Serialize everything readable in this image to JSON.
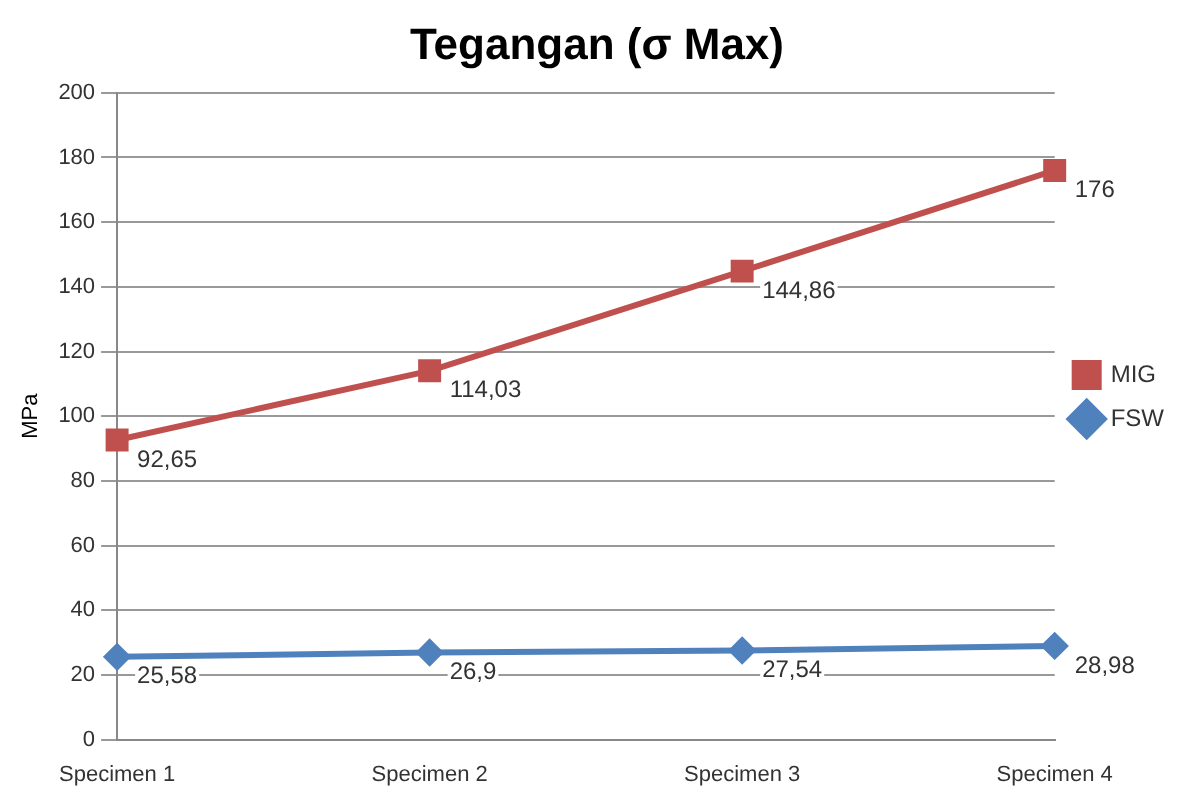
{
  "chart_data": {
    "type": "line",
    "title": "Tegangan (σ Max)",
    "ylabel": "MPa",
    "categories": [
      "Specimen 1",
      "Specimen 2",
      "Specimen 3",
      "Specimen 4"
    ],
    "series": [
      {
        "name": "MIG",
        "color": "#c0504d",
        "marker": "square",
        "values": [
          92.65,
          114.03,
          144.86,
          176
        ],
        "value_labels": [
          "92,65",
          "114,03",
          "144,86",
          "176"
        ]
      },
      {
        "name": "FSW",
        "color": "#4f81bd",
        "marker": "diamond",
        "values": [
          25.58,
          26.9,
          27.54,
          28.98
        ],
        "value_labels": [
          "25,58",
          "26,9",
          "27,54",
          "28,98"
        ]
      }
    ],
    "ylim": [
      0,
      200
    ],
    "yticks": [
      0,
      20,
      40,
      60,
      80,
      100,
      120,
      140,
      160,
      180,
      200
    ],
    "grid": "y",
    "legend": "right"
  }
}
